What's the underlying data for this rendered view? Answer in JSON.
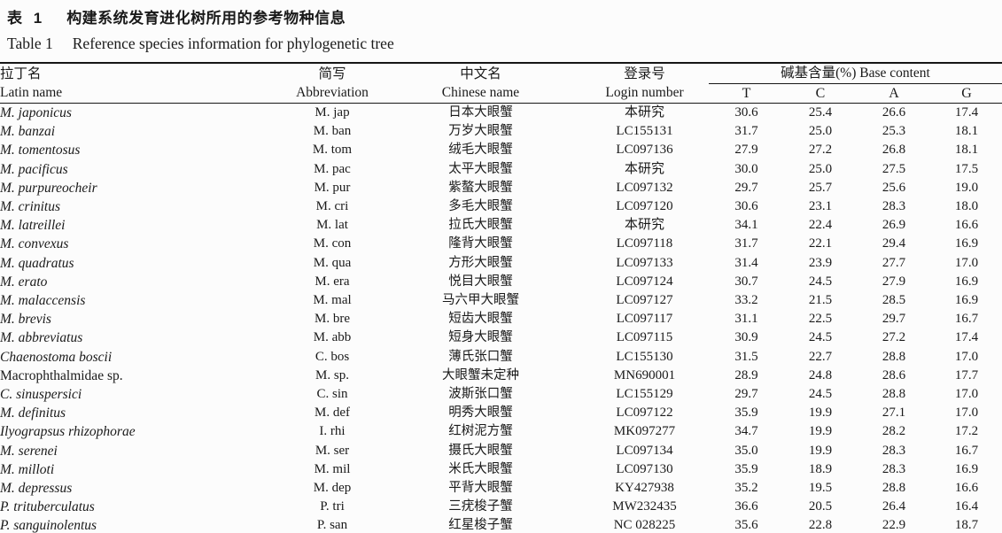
{
  "title": {
    "zh_label": "表 1",
    "zh_text": "构建系统发育进化树所用的参考物种信息",
    "en_label": "Table 1",
    "en_text": "Reference species information for phylogenetic tree"
  },
  "table": {
    "columns": {
      "latin_zh": "拉丁名",
      "latin_en": "Latin name",
      "abbr_zh": "简写",
      "abbr_en": "Abbreviation",
      "chinese_zh": "中文名",
      "chinese_en": "Chinese name",
      "login_zh": "登录号",
      "login_en": "Login number",
      "base_group": "碱基含量(%) Base content",
      "bases": [
        "T",
        "C",
        "A",
        "G"
      ]
    },
    "rows": [
      {
        "latin": "M. japonicus",
        "italic": true,
        "abbr": "M. jap",
        "chinese": "日本大眼蟹",
        "login": "本研究",
        "t": "30.6",
        "c": "25.4",
        "a": "26.6",
        "g": "17.4"
      },
      {
        "latin": "M. banzai",
        "italic": true,
        "abbr": "M. ban",
        "chinese": "万岁大眼蟹",
        "login": "LC155131",
        "t": "31.7",
        "c": "25.0",
        "a": "25.3",
        "g": "18.1"
      },
      {
        "latin": "M. tomentosus",
        "italic": true,
        "abbr": "M. tom",
        "chinese": "绒毛大眼蟹",
        "login": "LC097136",
        "t": "27.9",
        "c": "27.2",
        "a": "26.8",
        "g": "18.1"
      },
      {
        "latin": "M. pacificus",
        "italic": true,
        "abbr": "M. pac",
        "chinese": "太平大眼蟹",
        "login": "本研究",
        "t": "30.0",
        "c": "25.0",
        "a": "27.5",
        "g": "17.5"
      },
      {
        "latin": "M. purpureocheir",
        "italic": true,
        "abbr": "M. pur",
        "chinese": "紫螯大眼蟹",
        "login": "LC097132",
        "t": "29.7",
        "c": "25.7",
        "a": "25.6",
        "g": "19.0"
      },
      {
        "latin": "M. crinitus",
        "italic": true,
        "abbr": "M. cri",
        "chinese": "多毛大眼蟹",
        "login": "LC097120",
        "t": "30.6",
        "c": "23.1",
        "a": "28.3",
        "g": "18.0"
      },
      {
        "latin": "M. latreillei",
        "italic": true,
        "abbr": "M. lat",
        "chinese": "拉氏大眼蟹",
        "login": "本研究",
        "t": "34.1",
        "c": "22.4",
        "a": "26.9",
        "g": "16.6"
      },
      {
        "latin": "M. convexus",
        "italic": true,
        "abbr": "M. con",
        "chinese": "隆背大眼蟹",
        "login": "LC097118",
        "t": "31.7",
        "c": "22.1",
        "a": "29.4",
        "g": "16.9"
      },
      {
        "latin": "M. quadratus",
        "italic": true,
        "abbr": "M. qua",
        "chinese": "方形大眼蟹",
        "login": "LC097133",
        "t": "31.4",
        "c": "23.9",
        "a": "27.7",
        "g": "17.0"
      },
      {
        "latin": "M. erato",
        "italic": true,
        "abbr": "M. era",
        "chinese": "悦目大眼蟹",
        "login": "LC097124",
        "t": "30.7",
        "c": "24.5",
        "a": "27.9",
        "g": "16.9"
      },
      {
        "latin": "M. malaccensis",
        "italic": true,
        "abbr": "M. mal",
        "chinese": "马六甲大眼蟹",
        "login": "LC097127",
        "t": "33.2",
        "c": "21.5",
        "a": "28.5",
        "g": "16.9"
      },
      {
        "latin": "M. brevis",
        "italic": true,
        "abbr": "M. bre",
        "chinese": "短齿大眼蟹",
        "login": "LC097117",
        "t": "31.1",
        "c": "22.5",
        "a": "29.7",
        "g": "16.7"
      },
      {
        "latin": "M. abbreviatus",
        "italic": true,
        "abbr": "M. abb",
        "chinese": "短身大眼蟹",
        "login": "LC097115",
        "t": "30.9",
        "c": "24.5",
        "a": "27.2",
        "g": "17.4"
      },
      {
        "latin": "Chaenostoma boscii",
        "italic": true,
        "abbr": "C. bos",
        "chinese": "薄氏张口蟹",
        "login": "LC155130",
        "t": "31.5",
        "c": "22.7",
        "a": "28.8",
        "g": "17.0"
      },
      {
        "latin": "Macrophthalmidae sp.",
        "italic": false,
        "abbr": "M. sp.",
        "chinese": "大眼蟹未定种",
        "login": "MN690001",
        "t": "28.9",
        "c": "24.8",
        "a": "28.6",
        "g": "17.7"
      },
      {
        "latin": "C. sinuspersici",
        "italic": true,
        "abbr": "C. sin",
        "chinese": "波斯张口蟹",
        "login": "LC155129",
        "t": "29.7",
        "c": "24.5",
        "a": "28.8",
        "g": "17.0"
      },
      {
        "latin": "M. definitus",
        "italic": true,
        "abbr": "M. def",
        "chinese": "明秀大眼蟹",
        "login": "LC097122",
        "t": "35.9",
        "c": "19.9",
        "a": "27.1",
        "g": "17.0"
      },
      {
        "latin": "Ilyograpsus rhizophorae",
        "italic": true,
        "abbr": "I. rhi",
        "chinese": "红树泥方蟹",
        "login": "MK097277",
        "t": "34.7",
        "c": "19.9",
        "a": "28.2",
        "g": "17.2"
      },
      {
        "latin": "M. serenei",
        "italic": true,
        "abbr": "M. ser",
        "chinese": "摄氏大眼蟹",
        "login": "LC097134",
        "t": "35.0",
        "c": "19.9",
        "a": "28.3",
        "g": "16.7"
      },
      {
        "latin": "M. milloti",
        "italic": true,
        "abbr": "M. mil",
        "chinese": "米氏大眼蟹",
        "login": "LC097130",
        "t": "35.9",
        "c": "18.9",
        "a": "28.3",
        "g": "16.9"
      },
      {
        "latin": "M. depressus",
        "italic": true,
        "abbr": "M. dep",
        "chinese": "平背大眼蟹",
        "login": "KY427938",
        "t": "35.2",
        "c": "19.5",
        "a": "28.8",
        "g": "16.6"
      },
      {
        "latin": "P. trituberculatus",
        "italic": true,
        "abbr": "P. tri",
        "chinese": "三疣梭子蟹",
        "login": "MW232435",
        "t": "36.6",
        "c": "20.5",
        "a": "26.4",
        "g": "16.4"
      },
      {
        "latin": "P. sanguinolentus",
        "italic": true,
        "abbr": "P. san",
        "chinese": "红星梭子蟹",
        "login": "NC 028225",
        "t": "35.6",
        "c": "22.8",
        "a": "22.9",
        "g": "18.7"
      }
    ]
  }
}
